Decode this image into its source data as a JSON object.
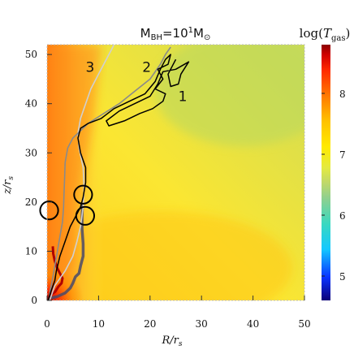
{
  "chart_data": {
    "type": "heatmap",
    "title": "M_BH=10^1 M_⊙",
    "title_parts": {
      "base": "M",
      "sub": "BH",
      "eq": "=10",
      "sup": "1",
      "unit": "M",
      "sun": "⊙"
    },
    "xlabel": "R/r_s",
    "xlabel_parts": {
      "main": "R/r",
      "sub": "s"
    },
    "ylabel": "z/r_s",
    "ylabel_parts": {
      "main": "z/r",
      "sub": "s"
    },
    "xlim": [
      0,
      50
    ],
    "ylim": [
      0,
      52
    ],
    "x_ticks": [
      0,
      10,
      20,
      30,
      40,
      50
    ],
    "y_ticks": [
      0,
      10,
      20,
      30,
      40,
      50
    ],
    "colorbar": {
      "label": "log(T_gas)",
      "label_parts": {
        "main": "log(",
        "T": "T",
        "sub": "gas",
        "close": ")"
      },
      "range": [
        4.6,
        8.8
      ],
      "ticks": [
        5,
        6,
        7,
        8
      ],
      "colors": [
        "#0b0078",
        "#0a33ff",
        "#14c8ff",
        "#3ad8c0",
        "#a6d080",
        "#d8e64a",
        "#ffea00",
        "#ffc200",
        "#ff7a00",
        "#ff2a00",
        "#d10000",
        "#8b0000"
      ]
    },
    "trajectories": [
      {
        "label": "1",
        "label_pos": [
          25.5,
          40.5
        ],
        "points": [
          [
            0.2,
            0
          ],
          [
            0.8,
            2
          ],
          [
            1.5,
            4
          ],
          [
            1.8,
            6
          ],
          [
            2.5,
            9
          ],
          [
            3.5,
            12
          ],
          [
            4.5,
            15
          ],
          [
            5.5,
            17
          ],
          [
            6.5,
            19
          ],
          [
            7,
            21
          ],
          [
            7.5,
            24
          ],
          [
            7.5,
            27
          ],
          [
            6.5,
            30
          ],
          [
            6,
            33
          ],
          [
            6.5,
            35
          ],
          [
            8,
            36
          ],
          [
            10.5,
            37
          ],
          [
            13,
            39
          ],
          [
            16,
            40.5
          ],
          [
            19,
            42
          ],
          [
            21,
            44.5
          ],
          [
            22,
            47
          ],
          [
            23,
            49
          ],
          [
            24,
            50
          ],
          [
            23.5,
            48
          ],
          [
            21.5,
            47
          ],
          [
            22.5,
            45
          ],
          [
            21,
            43
          ],
          [
            23,
            42
          ],
          [
            22.5,
            40.5
          ],
          [
            20.5,
            39
          ],
          [
            18,
            38
          ],
          [
            15,
            36.5
          ],
          [
            12,
            35.5
          ],
          [
            11.5,
            36.5
          ],
          [
            14,
            38.5
          ],
          [
            17,
            40
          ],
          [
            20,
            41.5
          ],
          [
            21.5,
            44
          ],
          [
            22.5,
            46.5
          ],
          [
            25,
            47
          ],
          [
            27.5,
            48.5
          ],
          [
            26,
            46
          ],
          [
            25.5,
            44
          ],
          [
            24,
            43.5
          ],
          [
            23.5,
            46
          ],
          [
            25,
            49
          ]
        ]
      },
      {
        "label": "2",
        "label_pos": [
          18.5,
          46.5
        ],
        "points": [
          [
            0.3,
            0
          ],
          [
            0.6,
            2
          ],
          [
            1,
            4
          ],
          [
            1.5,
            7
          ],
          [
            2,
            10
          ],
          [
            2.5,
            13
          ],
          [
            3,
            16
          ],
          [
            3.2,
            19
          ],
          [
            3.3,
            22
          ],
          [
            3.4,
            25
          ],
          [
            3.5,
            28
          ],
          [
            4,
            31
          ],
          [
            5,
            33
          ],
          [
            8,
            36
          ],
          [
            11,
            38
          ],
          [
            14,
            40
          ],
          [
            17,
            42.5
          ],
          [
            20,
            45
          ],
          [
            22,
            48
          ],
          [
            23,
            50
          ],
          [
            24,
            51.5
          ]
        ]
      },
      {
        "label": "3",
        "label_pos": [
          7.5,
          46.5
        ],
        "points": [
          [
            0.5,
            0
          ],
          [
            1.5,
            3
          ],
          [
            3.5,
            6
          ],
          [
            5,
            9
          ],
          [
            5.8,
            12
          ],
          [
            6.5,
            15
          ],
          [
            7,
            19
          ],
          [
            7.2,
            23
          ],
          [
            7,
            27
          ],
          [
            6.2,
            31
          ],
          [
            6,
            34
          ],
          [
            6.5,
            37
          ],
          [
            7.5,
            40
          ],
          [
            8.5,
            43
          ],
          [
            10,
            46
          ],
          [
            11.5,
            49
          ],
          [
            12.5,
            51
          ],
          [
            13,
            52
          ]
        ]
      }
    ],
    "dark_curve": [
      [
        0.8,
        0.5
      ],
      [
        2,
        0.8
      ],
      [
        3.5,
        1.5
      ],
      [
        4.5,
        2.5
      ],
      [
        5,
        3.5
      ],
      [
        5.5,
        4.8
      ],
      [
        6.2,
        5.5
      ],
      [
        6.5,
        7
      ],
      [
        7,
        9
      ],
      [
        7,
        11.5
      ],
      [
        6.8,
        14.5
      ],
      [
        6.8,
        17.5
      ],
      [
        6.9,
        19.5
      ]
    ],
    "red_curve": [
      [
        0.2,
        0.5
      ],
      [
        0.8,
        1.2
      ],
      [
        1.6,
        1.8
      ],
      [
        2.2,
        2.8
      ],
      [
        2.8,
        3.5
      ],
      [
        3,
        4.5
      ],
      [
        2.5,
        5.5
      ],
      [
        2,
        6.5
      ],
      [
        1.5,
        8
      ],
      [
        1.2,
        9.5
      ],
      [
        1.1,
        11
      ]
    ],
    "circles": [
      [
        0.4,
        18.3
      ],
      [
        7,
        21.5
      ],
      [
        7.4,
        17.2
      ]
    ],
    "circle_radius": 1.75
  }
}
